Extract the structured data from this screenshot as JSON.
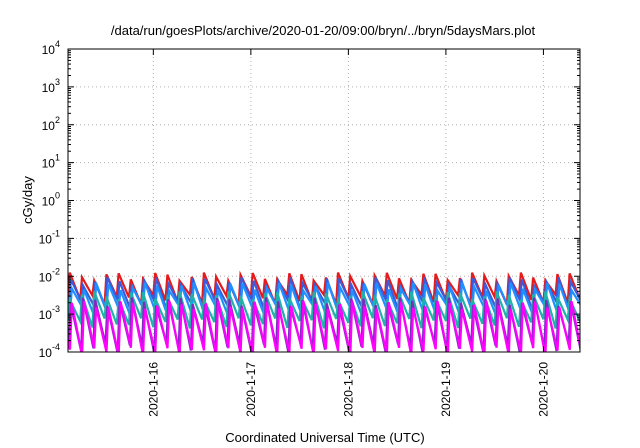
{
  "chart_data": {
    "type": "line",
    "title": "/data/run/goesPlots/archive/2020-01-20/09:00/bryn/../bryn/5daysMars.plot",
    "xlabel": "Coordinated Universal Time (UTC)",
    "ylabel": "cGy/day",
    "yscale": "log",
    "ylim": [
      0.0001,
      10000
    ],
    "xlim": [
      "2020-01-15 03:00",
      "2020-01-20 09:00"
    ],
    "x_ticks": [
      "2020-1-16",
      "2020-1-17",
      "2020-1-18",
      "2020-1-19",
      "2020-1-20"
    ],
    "y_ticks": [
      {
        "base": "10",
        "exp": "-4"
      },
      {
        "base": "10",
        "exp": "-3"
      },
      {
        "base": "10",
        "exp": "-2"
      },
      {
        "base": "10",
        "exp": "-1"
      },
      {
        "base": "10",
        "exp": "0"
      },
      {
        "base": "10",
        "exp": "1"
      },
      {
        "base": "10",
        "exp": "2"
      },
      {
        "base": "10",
        "exp": "3"
      },
      {
        "base": "10",
        "exp": "4"
      }
    ],
    "grid": true,
    "legend": "none",
    "sawtooth_period_hours": 3,
    "series": [
      {
        "color": "#e41a1c",
        "peak": 0.01,
        "trough": 0.0025
      },
      {
        "color": "#3b5bdb",
        "peak": 0.0075,
        "trough": 0.0018
      },
      {
        "color": "#1e90ff",
        "peak": 0.0055,
        "trough": 0.0012
      },
      {
        "color": "#20b2aa",
        "peak": 0.0032,
        "trough": 0.0006
      },
      {
        "color": "#7b2cbf",
        "peak": 0.0022,
        "trough": 0.00013
      },
      {
        "color": "#ff00ff",
        "peak": 0.0018,
        "trough": 0.0001
      }
    ]
  }
}
